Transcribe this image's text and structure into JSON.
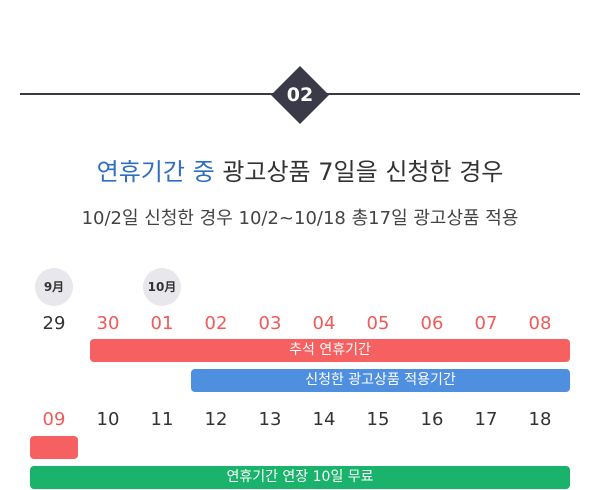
{
  "step": {
    "number": "02"
  },
  "headline": {
    "accent": "연휴기간 중",
    "rest": "광고상품 7일을 신청한 경우"
  },
  "subline": "10/2일 신청한 경우 10/2~10/18 총17일 광고상품 적용",
  "calendar": {
    "months": {
      "sep": "9月",
      "oct": "10月"
    },
    "week1": [
      "29",
      "30",
      "01",
      "02",
      "03",
      "04",
      "05",
      "06",
      "07",
      "08"
    ],
    "week2": [
      "09",
      "10",
      "11",
      "12",
      "13",
      "14",
      "15",
      "16",
      "17",
      "18"
    ]
  },
  "bars": {
    "holiday": "추석 연휴기간",
    "applied": "신청한 광고상품 적용기간",
    "extension": "연휴기간 연장 10일 무료"
  },
  "colors": {
    "accent": "#2f6fc0",
    "holiday": "#f76060",
    "applied": "#4f8fe0",
    "extension": "#19b36c",
    "badge": "#3a3a48"
  }
}
